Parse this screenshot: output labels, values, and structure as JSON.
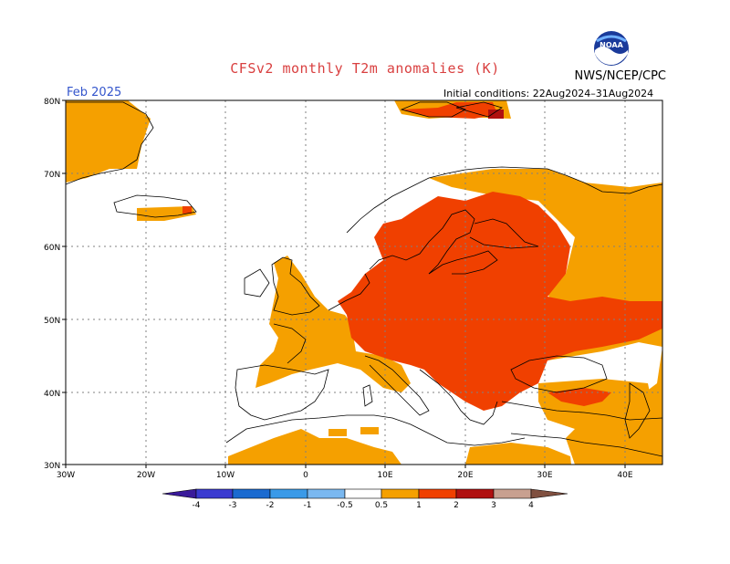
{
  "title": "CFSv2 monthly T2m anomalies (K)",
  "agency": "NWS/NCEP/CPC",
  "logo_text": "NOAA",
  "month": "Feb 2025",
  "initial_conditions": "Initial conditions: 22Aug2024–31Aug2024",
  "axes": {
    "lat_labels": [
      "80N",
      "70N",
      "60N",
      "50N",
      "40N",
      "30N"
    ],
    "lon_labels": [
      "30W",
      "20W",
      "10W",
      "0",
      "10E",
      "20E",
      "30E",
      "40E"
    ]
  },
  "colorbar": {
    "labels": [
      "-4",
      "-3",
      "-2",
      "-1",
      "-0.5",
      "0.5",
      "1",
      "2",
      "3",
      "4"
    ],
    "colors": {
      "lt_m4": "#3a1a9a",
      "m4_m3": "#3a3ad0",
      "m3_m2": "#1a6ad0",
      "m2_m1": "#3a9ae8",
      "m1_m05": "#7ab8f0",
      "neutral": "#ffffff",
      "p05_p1": "#f5a000",
      "p1_p2": "#f04000",
      "p2_p3": "#b01010",
      "p3_p4": "#c8a090",
      "gt_p4": "#805040"
    }
  },
  "legend_colors": {
    "anomaly_05_1": "#f5a000",
    "anomaly_1_2": "#f04000",
    "anomaly_2_3": "#b01010"
  }
}
